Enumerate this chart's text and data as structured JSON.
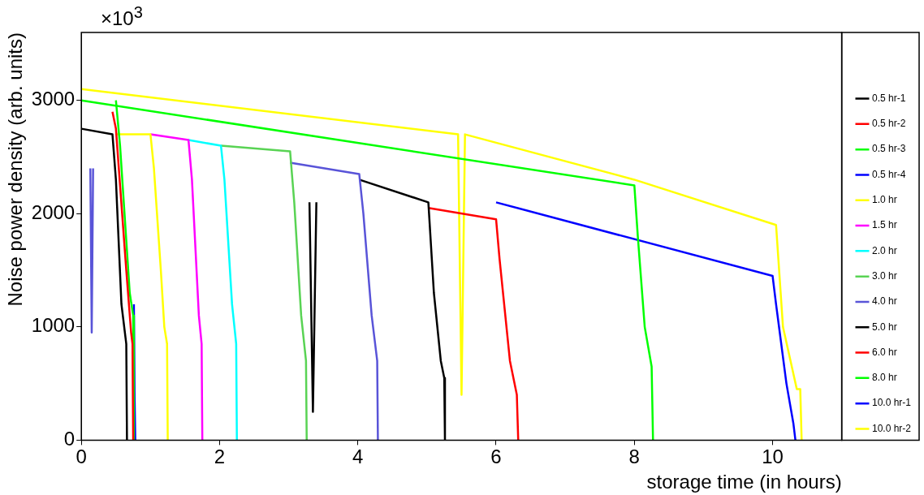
{
  "chart_data": {
    "type": "line",
    "xlabel": "storage time (in hours)",
    "ylabel": "Noise power density (arb. units)",
    "annotations": [
      "×10$^{3}$"
    ],
    "xlim": [
      0,
      11
    ],
    "xticks": [
      0,
      2,
      4,
      6,
      8,
      10
    ],
    "ylim": [
      0,
      3600
    ],
    "yticks": [
      0,
      1000,
      2000,
      3000
    ],
    "legend": "right",
    "marker": "none",
    "line_style": "solid",
    "series": [
      {
        "name": "0.5 hr-1",
        "color": "#000000",
        "x": [
          0,
          0.45,
          0.5,
          0.58,
          0.64,
          0.65,
          0.66
        ],
        "values": [
          2750,
          2700,
          2300,
          1200,
          900,
          850,
          0
        ]
      },
      {
        "name": "0.5 hr-2",
        "color": "#ff0000",
        "x": [
          0.45,
          0.5,
          0.65,
          0.72,
          0.74,
          0.75
        ],
        "values": [
          2900,
          2750,
          1500,
          950,
          850,
          0
        ]
      },
      {
        "name": "0.5 hr-3",
        "color": "#00ff00",
        "x": [
          0.5,
          0.56,
          0.7,
          0.75,
          0.76
        ],
        "values": [
          3000,
          2600,
          1300,
          1100,
          0
        ]
      },
      {
        "name": "0.5 hr-4",
        "color": "#0000ff",
        "x": [
          0.76,
          0.77,
          0.78
        ],
        "values": [
          1200,
          400,
          0
        ]
      },
      {
        "name": "1.0 hr",
        "color": "#ffff00",
        "x": [
          0.5,
          1.0,
          1.05,
          1.15,
          1.2,
          1.24,
          1.25
        ],
        "values": [
          2700,
          2700,
          2400,
          1500,
          1000,
          850,
          0
        ]
      },
      {
        "name": "1.5 hr",
        "color": "#ff00ff",
        "x": [
          1.0,
          1.55,
          1.6,
          1.7,
          1.74,
          1.75
        ],
        "values": [
          2700,
          2650,
          2300,
          1100,
          850,
          0
        ]
      },
      {
        "name": "2.0 hr",
        "color": "#00ffff",
        "x": [
          1.55,
          2.02,
          2.07,
          2.18,
          2.24,
          2.25
        ],
        "values": [
          2650,
          2600,
          2300,
          1200,
          850,
          0
        ]
      },
      {
        "name": "3.0 hr",
        "color": "#59d354",
        "x": [
          2.02,
          3.02,
          3.08,
          3.18,
          3.25,
          3.26
        ],
        "values": [
          2600,
          2550,
          2100,
          1100,
          700,
          0
        ]
      },
      {
        "name": "4.0 hr",
        "color": "#5954d8",
        "x": [
          0.13,
          0.15,
          0.17,
          0.18,
          3.02,
          4.02,
          4.08,
          4.2,
          4.28,
          4.29
        ],
        "values": [
          2400,
          950,
          2400,
          null,
          2450,
          2350,
          2000,
          1100,
          700,
          0
        ]
      },
      {
        "name": "5.0 hr",
        "color": "#000000",
        "x": [
          3.3,
          3.35,
          3.4,
          3.41,
          4.02,
          5.02,
          5.1,
          5.2,
          5.25,
          5.26
        ],
        "values": [
          2100,
          250,
          2100,
          null,
          2300,
          2100,
          1300,
          700,
          550,
          0
        ]
      },
      {
        "name": "6.0 hr",
        "color": "#ff0000",
        "x": [
          5.02,
          6.0,
          6.05,
          6.2,
          6.3,
          6.32
        ],
        "values": [
          2050,
          1950,
          1600,
          700,
          400,
          0
        ]
      },
      {
        "name": "8.0 hr",
        "color": "#00ff00",
        "x": [
          0,
          8.0,
          8.05,
          8.15,
          8.25,
          8.27
        ],
        "values": [
          3000,
          2250,
          1800,
          1000,
          650,
          0
        ]
      },
      {
        "name": "10.0 hr-1",
        "color": "#0000ff",
        "x": [
          6,
          10.0,
          10.05,
          10.2,
          10.3,
          10.33
        ],
        "values": [
          2100,
          1450,
          1200,
          500,
          150,
          0
        ]
      },
      {
        "name": "10.0 hr-2",
        "color": "#ffff00",
        "x": [
          0,
          5.45,
          5.5,
          5.55,
          8,
          10.05,
          10.15,
          10.35,
          10.4,
          10.42
        ],
        "values": [
          3100,
          2700,
          400,
          2700,
          2300,
          1900,
          1000,
          450,
          450,
          0
        ]
      }
    ]
  }
}
